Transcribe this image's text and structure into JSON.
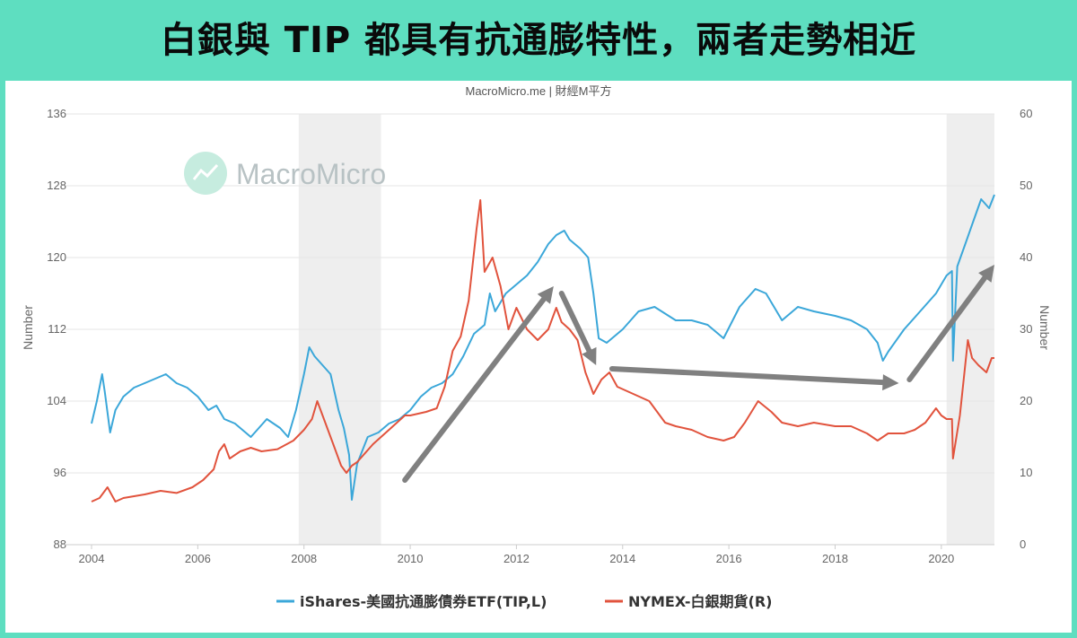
{
  "banner": {
    "title": "白銀與 TIP 都具有抗通膨特性，兩者走勢相近"
  },
  "chart_data": {
    "type": "line",
    "source": "MacroMicro.me | 財經M平方",
    "watermark": "MacroMicro",
    "x_ticks": [
      "2004",
      "2006",
      "2008",
      "2010",
      "2012",
      "2014",
      "2016",
      "2018",
      "2020"
    ],
    "x_range": [
      2004.0,
      2021.0
    ],
    "y_left": {
      "label": "Number",
      "range": [
        88,
        136
      ],
      "ticks": [
        "88",
        "96",
        "104",
        "112",
        "120",
        "128",
        "136"
      ]
    },
    "y_right": {
      "label": "Number",
      "range": [
        0,
        60
      ],
      "ticks": [
        "0",
        "10",
        "20",
        "30",
        "40",
        "50",
        "60"
      ]
    },
    "shaded_periods": [
      [
        2007.9,
        2009.45
      ],
      [
        2020.1,
        2021.0
      ]
    ],
    "grid": true,
    "legend_position": "bottom",
    "series": [
      {
        "name": "iShares-美國抗通膨債券ETF(TIP,L)",
        "axis": "left",
        "color": "#3BA7D9",
        "x": [
          2004.0,
          2004.1,
          2004.2,
          2004.25,
          2004.35,
          2004.45,
          2004.6,
          2004.8,
          2005.0,
          2005.2,
          2005.4,
          2005.6,
          2005.8,
          2006.0,
          2006.2,
          2006.35,
          2006.5,
          2006.7,
          2007.0,
          2007.3,
          2007.55,
          2007.7,
          2007.85,
          2008.0,
          2008.1,
          2008.2,
          2008.35,
          2008.5,
          2008.65,
          2008.75,
          2008.85,
          2008.9,
          2009.0,
          2009.2,
          2009.4,
          2009.6,
          2009.8,
          2010.0,
          2010.2,
          2010.4,
          2010.6,
          2010.8,
          2011.0,
          2011.2,
          2011.4,
          2011.5,
          2011.6,
          2011.8,
          2012.0,
          2012.2,
          2012.4,
          2012.6,
          2012.75,
          2012.9,
          2013.0,
          2013.2,
          2013.35,
          2013.45,
          2013.55,
          2013.7,
          2014.0,
          2014.3,
          2014.6,
          2015.0,
          2015.3,
          2015.6,
          2015.9,
          2016.2,
          2016.5,
          2016.7,
          2016.9,
          2017.0,
          2017.3,
          2017.6,
          2018.0,
          2018.3,
          2018.6,
          2018.8,
          2018.9,
          2019.0,
          2019.3,
          2019.6,
          2019.9,
          2020.0,
          2020.1,
          2020.2,
          2020.22,
          2020.3,
          2020.45,
          2020.6,
          2020.75,
          2020.9,
          2021.0
        ],
        "values": [
          101.5,
          104,
          107,
          105,
          100.5,
          103,
          104.5,
          105.5,
          106,
          106.5,
          107,
          106,
          105.5,
          104.5,
          103,
          103.5,
          102,
          101.5,
          100,
          102,
          101,
          100,
          103,
          107,
          110,
          109,
          108,
          107,
          103,
          101,
          98,
          93,
          97,
          100,
          100.5,
          101.5,
          102,
          103,
          104.5,
          105.5,
          106,
          107,
          109,
          111.5,
          112.5,
          116,
          114,
          116,
          117,
          118,
          119.5,
          121.5,
          122.5,
          123,
          122,
          121,
          120,
          116,
          111,
          110.5,
          112,
          114,
          114.5,
          113,
          113,
          112.5,
          111,
          114.5,
          116.5,
          116,
          114,
          113,
          114.5,
          114,
          113.5,
          113,
          112,
          110.5,
          108.5,
          109.5,
          112,
          114,
          116,
          117,
          118,
          118.5,
          108.5,
          119,
          121.5,
          124,
          126.5,
          125.5,
          127
        ]
      },
      {
        "name": "NYMEX-白銀期貨(R)",
        "axis": "right",
        "color": "#E1533D",
        "x": [
          2004.0,
          2004.15,
          2004.3,
          2004.45,
          2004.6,
          2005.0,
          2005.3,
          2005.6,
          2005.9,
          2006.1,
          2006.3,
          2006.4,
          2006.5,
          2006.6,
          2006.8,
          2007.0,
          2007.2,
          2007.5,
          2007.8,
          2008.0,
          2008.15,
          2008.25,
          2008.4,
          2008.55,
          2008.7,
          2008.8,
          2008.9,
          2009.0,
          2009.3,
          2009.6,
          2009.9,
          2010.0,
          2010.3,
          2010.5,
          2010.65,
          2010.8,
          2010.95,
          2011.1,
          2011.25,
          2011.32,
          2011.4,
          2011.55,
          2011.7,
          2011.85,
          2012.0,
          2012.2,
          2012.4,
          2012.6,
          2012.75,
          2012.85,
          2013.0,
          2013.15,
          2013.3,
          2013.45,
          2013.6,
          2013.75,
          2013.9,
          2014.2,
          2014.5,
          2014.8,
          2015.0,
          2015.3,
          2015.6,
          2015.9,
          2016.1,
          2016.3,
          2016.55,
          2016.8,
          2017.0,
          2017.3,
          2017.6,
          2018.0,
          2018.3,
          2018.6,
          2018.8,
          2019.0,
          2019.3,
          2019.5,
          2019.7,
          2019.9,
          2020.0,
          2020.1,
          2020.2,
          2020.22,
          2020.35,
          2020.5,
          2020.58,
          2020.7,
          2020.85,
          2020.95,
          2021.0
        ],
        "values": [
          6,
          6.5,
          8,
          6,
          6.5,
          7,
          7.5,
          7.2,
          8,
          9,
          10.5,
          13,
          14,
          12,
          13,
          13.5,
          13,
          13.3,
          14.5,
          16,
          17.5,
          20,
          17,
          14,
          11,
          10,
          11,
          11.5,
          14,
          16,
          18,
          18,
          18.5,
          19,
          22,
          27,
          29,
          34,
          44,
          48,
          38,
          40,
          36,
          30,
          33,
          30,
          28.5,
          30,
          33,
          31,
          30,
          28.5,
          24,
          21,
          23,
          24,
          22,
          21,
          20,
          17,
          16.5,
          16,
          15,
          14.5,
          15,
          17,
          20,
          18.5,
          17,
          16.5,
          17,
          16.5,
          16.5,
          15.5,
          14.5,
          15.5,
          15.5,
          16,
          17,
          19,
          18,
          17.5,
          17.5,
          12,
          18,
          28.5,
          26,
          25,
          24,
          26,
          26
        ]
      }
    ],
    "annotations": [
      {
        "type": "arrow",
        "from": [
          2009.9,
          9
        ],
        "to": [
          2012.7,
          36
        ]
      },
      {
        "type": "arrow",
        "from": [
          2012.85,
          35
        ],
        "to": [
          2013.5,
          25
        ]
      },
      {
        "type": "arrow",
        "from": [
          2013.8,
          24.5
        ],
        "to": [
          2019.2,
          22.5
        ]
      },
      {
        "type": "arrow",
        "from": [
          2019.4,
          23
        ],
        "to": [
          2021.0,
          39
        ]
      }
    ]
  }
}
